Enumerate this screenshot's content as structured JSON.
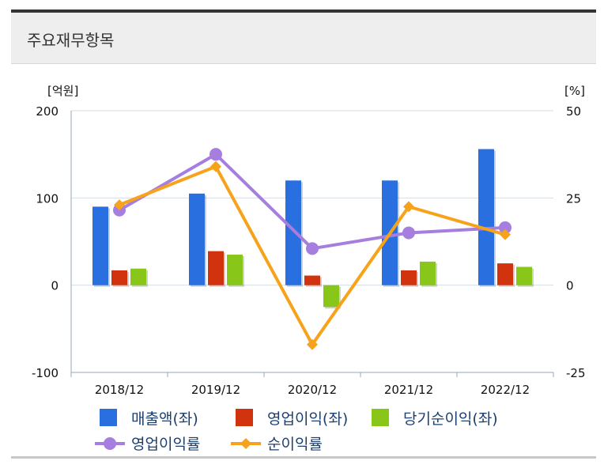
{
  "panel": {
    "title": "주요재무항목"
  },
  "chart_data": {
    "type": "bar",
    "categories": [
      "2018/12",
      "2019/12",
      "2020/12",
      "2021/12",
      "2022/12"
    ],
    "y_left": {
      "unit_label": "[억원]",
      "ylim": [
        -100,
        200
      ],
      "ticks": [
        "200",
        "100",
        "0",
        "-100"
      ]
    },
    "y_right": {
      "unit_label": "[%]",
      "ylim": [
        -25,
        50
      ],
      "ticks": [
        "50",
        "25",
        "0",
        "-25"
      ]
    },
    "series": [
      {
        "name": "매출액(좌)",
        "kind": "bar",
        "axis": "left",
        "color": "#2a6fe0",
        "values": [
          90,
          105,
          120,
          120,
          156
        ]
      },
      {
        "name": "영업이익(좌)",
        "kind": "bar",
        "axis": "left",
        "color": "#d1330f",
        "values": [
          17,
          39,
          11,
          17,
          25
        ]
      },
      {
        "name": "당기순이익(좌)",
        "kind": "bar",
        "axis": "left",
        "color": "#88c61a",
        "values": [
          19,
          35,
          -25,
          27,
          21
        ]
      },
      {
        "name": "영업이익률",
        "kind": "line",
        "axis": "right",
        "color": "#a57ee0",
        "marker": "circle",
        "values": [
          21.5,
          37.5,
          10.5,
          15,
          16.5
        ]
      },
      {
        "name": "순이익률",
        "kind": "line",
        "axis": "right",
        "color": "#f7a21b",
        "marker": "diamond",
        "values": [
          23,
          34,
          -17,
          22.5,
          14.5
        ]
      }
    ],
    "grid": true,
    "legend_position": "bottom"
  }
}
